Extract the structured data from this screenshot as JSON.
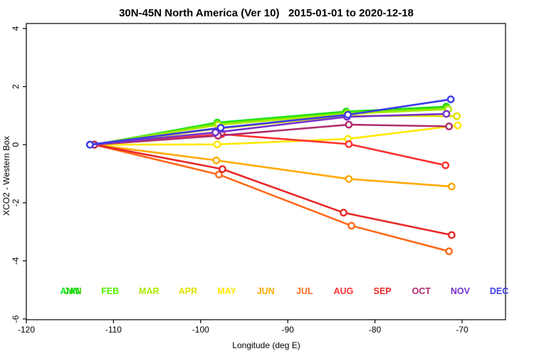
{
  "figure": {
    "title": "30N-45N North America (Ver 10)   2015-01-01 to 2020-12-18",
    "xlabel": "Longitude (deg E)",
    "ylabel": "XCO2 - Western Box"
  },
  "chart_data": {
    "type": "line",
    "title": "30N-45N North America (Ver 10)   2015-01-01 to 2020-12-18",
    "xlabel": "Longitude (deg E)",
    "ylabel": "XCO2 - Western Box",
    "xlim": [
      -121,
      -66.5
    ],
    "ylim": [
      -6.2,
      4.2
    ],
    "xticks": [
      -120,
      -110,
      -100,
      -90,
      -80,
      -70
    ],
    "yticks": [
      -6,
      -4,
      -2,
      0,
      2,
      4
    ],
    "grid": false,
    "marker": "open-circle",
    "legend_position": "bottom-inside",
    "legend": [
      {
        "label": "ANN",
        "color": "#00EE22",
        "slot": 0,
        "dx": -2
      },
      {
        "label": "JAN",
        "color": "#33CC00",
        "slot": 0,
        "dx": 2
      },
      {
        "label": "FEB",
        "color": "#55EE00",
        "slot": 1,
        "dx": 0
      },
      {
        "label": "MAR",
        "color": "#AAE800",
        "slot": 2,
        "dx": 0
      },
      {
        "label": "APR",
        "color": "#E0E000",
        "slot": 3,
        "dx": 0
      },
      {
        "label": "MAY",
        "color": "#FFE800",
        "slot": 4,
        "dx": 0
      },
      {
        "label": "JUN",
        "color": "#FFAA00",
        "slot": 5,
        "dx": 0
      },
      {
        "label": "JUL",
        "color": "#FF6A1A",
        "slot": 6,
        "dx": 0
      },
      {
        "label": "AUG",
        "color": "#FF3030",
        "slot": 7,
        "dx": 0
      },
      {
        "label": "SEP",
        "color": "#E82828",
        "slot": 8,
        "dx": 0
      },
      {
        "label": "OCT",
        "color": "#B02D6E",
        "slot": 9,
        "dx": 0
      },
      {
        "label": "NOV",
        "color": "#7733CC",
        "slot": 10,
        "dx": 0
      },
      {
        "label": "DEC",
        "color": "#3C3CE6",
        "slot": 11,
        "dx": 0
      }
    ],
    "series": [
      {
        "name": "ANN",
        "color": "#00EE22",
        "x": [
          -112.2,
          -98.1,
          -83.3,
          -71.8
        ],
        "y": [
          0,
          0.76,
          1.14,
          1.31
        ]
      },
      {
        "name": "JAN",
        "color": "#33CC00",
        "x": [
          -112.2,
          -98.1,
          -83.3,
          -71.8
        ],
        "y": [
          0,
          0.74,
          1.12,
          1.29
        ]
      },
      {
        "name": "FEB",
        "color": "#55EE00",
        "x": [
          -112.2,
          -98.1,
          -83.2,
          -71.7
        ],
        "y": [
          0,
          0.72,
          1.1,
          1.26
        ]
      },
      {
        "name": "MAR",
        "color": "#AAE800",
        "x": [
          -112.2,
          -98.0,
          -83.2,
          -71.6
        ],
        "y": [
          0,
          0.68,
          1.06,
          1.22
        ]
      },
      {
        "name": "APR",
        "color": "#E0E000",
        "x": [
          -112.2,
          -98.0,
          -83.2,
          -70.6
        ],
        "y": [
          0,
          0.55,
          1.0,
          0.98
        ]
      },
      {
        "name": "MAY",
        "color": "#FFE800",
        "x": [
          -112.2,
          -98.1,
          -83.1,
          -70.5
        ],
        "y": [
          0,
          0.01,
          0.2,
          0.66
        ]
      },
      {
        "name": "JUN",
        "color": "#FFAA00",
        "x": [
          -112.2,
          -98.2,
          -83.0,
          -71.2
        ],
        "y": [
          0,
          -0.54,
          -1.18,
          -1.44
        ]
      },
      {
        "name": "JUL",
        "color": "#FF6A1A",
        "x": [
          -112.2,
          -97.9,
          -82.7,
          -71.5
        ],
        "y": [
          0,
          -1.03,
          -2.79,
          -3.67
        ]
      },
      {
        "name": "AUG",
        "color": "#FF3030",
        "x": [
          -112.2,
          -97.6,
          -83.0,
          -71.9
        ],
        "y": [
          0,
          0.36,
          0.02,
          -0.71
        ]
      },
      {
        "name": "SEP",
        "color": "#E82828",
        "x": [
          -112.2,
          -97.5,
          -83.6,
          -71.2
        ],
        "y": [
          0,
          -0.84,
          -2.34,
          -3.11
        ]
      },
      {
        "name": "OCT",
        "color": "#B02D6E",
        "x": [
          -112.2,
          -98.0,
          -83.0,
          -71.5
        ],
        "y": [
          0,
          0.31,
          0.69,
          0.63
        ]
      },
      {
        "name": "NOV",
        "color": "#7733CC",
        "x": [
          -112.7,
          -98.3,
          -83.2,
          -71.8
        ],
        "y": [
          0,
          0.42,
          0.96,
          1.06
        ]
      },
      {
        "name": "DEC",
        "color": "#3C3CE6",
        "x": [
          -112.7,
          -97.7,
          -83.1,
          -71.3
        ],
        "y": [
          0,
          0.58,
          1.03,
          1.56
        ]
      }
    ]
  }
}
